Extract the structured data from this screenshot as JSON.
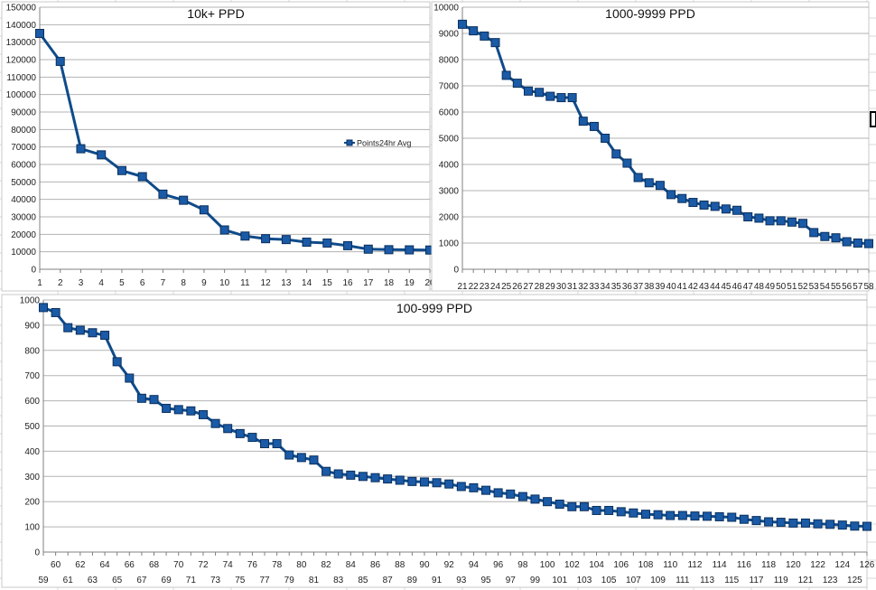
{
  "colors": {
    "series": "#0f4b8a",
    "marker": "#1a5aa6",
    "marker_stroke": "#0a2f5c",
    "grid": "#b3b3b3",
    "axis": "#808080"
  },
  "chart_data": [
    {
      "type": "line",
      "title": "10k+ PPD",
      "legend": {
        "labels": [
          "Points24hr Avg"
        ],
        "position": "right"
      },
      "x": [
        1,
        2,
        3,
        4,
        5,
        6,
        7,
        8,
        9,
        10,
        11,
        12,
        13,
        14,
        15,
        16,
        17,
        18,
        19,
        20
      ],
      "ylim": [
        0,
        150000
      ],
      "yticks": [
        0,
        10000,
        20000,
        30000,
        40000,
        50000,
        60000,
        70000,
        80000,
        90000,
        100000,
        110000,
        120000,
        130000,
        140000,
        150000
      ],
      "series": [
        {
          "name": "Points24hr Avg",
          "values": [
            135000,
            119000,
            69000,
            65500,
            56500,
            53000,
            43000,
            39500,
            34000,
            22500,
            19000,
            17500,
            17000,
            15500,
            15000,
            13500,
            11500,
            11200,
            11100,
            11000
          ]
        }
      ]
    },
    {
      "type": "line",
      "title": "1000-9999 PPD",
      "x": [
        21,
        22,
        23,
        24,
        25,
        26,
        27,
        28,
        29,
        30,
        31,
        32,
        33,
        34,
        35,
        36,
        37,
        38,
        39,
        40,
        41,
        42,
        43,
        44,
        45,
        46,
        47,
        48,
        49,
        50,
        51,
        52,
        53,
        54,
        55,
        56,
        57,
        58
      ],
      "ylim": [
        0,
        10000
      ],
      "yticks": [
        0,
        1000,
        2000,
        3000,
        4000,
        5000,
        6000,
        7000,
        8000,
        9000,
        10000
      ],
      "series": [
        {
          "values": [
            9350,
            9100,
            8900,
            8650,
            7400,
            7100,
            6800,
            6750,
            6600,
            6550,
            6550,
            5650,
            5450,
            5000,
            4400,
            4050,
            3500,
            3300,
            3200,
            2850,
            2700,
            2550,
            2450,
            2400,
            2300,
            2250,
            2000,
            1950,
            1850,
            1850,
            1800,
            1750,
            1400,
            1250,
            1200,
            1050,
            1000,
            980
          ]
        }
      ]
    },
    {
      "type": "line",
      "title": "100-999 PPD",
      "x": [
        59,
        60,
        61,
        62,
        63,
        64,
        65,
        66,
        67,
        68,
        69,
        70,
        71,
        72,
        73,
        74,
        75,
        76,
        77,
        78,
        79,
        80,
        81,
        82,
        83,
        84,
        85,
        86,
        87,
        88,
        89,
        90,
        91,
        92,
        93,
        94,
        95,
        96,
        97,
        98,
        99,
        100,
        101,
        102,
        103,
        104,
        105,
        106,
        107,
        108,
        109,
        110,
        111,
        112,
        113,
        114,
        115,
        116,
        117,
        118,
        119,
        120,
        121,
        122,
        123,
        124,
        125,
        126
      ],
      "ylim": [
        0,
        1000
      ],
      "yticks": [
        0,
        100,
        200,
        300,
        400,
        500,
        600,
        700,
        800,
        900,
        1000
      ],
      "series": [
        {
          "values": [
            970,
            950,
            890,
            880,
            870,
            860,
            755,
            690,
            610,
            605,
            570,
            565,
            560,
            545,
            510,
            490,
            470,
            455,
            430,
            430,
            385,
            375,
            365,
            320,
            310,
            305,
            300,
            295,
            290,
            285,
            280,
            278,
            275,
            270,
            260,
            255,
            245,
            235,
            230,
            220,
            210,
            200,
            190,
            180,
            180,
            165,
            165,
            160,
            155,
            150,
            148,
            145,
            145,
            143,
            142,
            140,
            138,
            130,
            125,
            120,
            118,
            115,
            115,
            112,
            110,
            107,
            103,
            102
          ]
        }
      ]
    }
  ]
}
